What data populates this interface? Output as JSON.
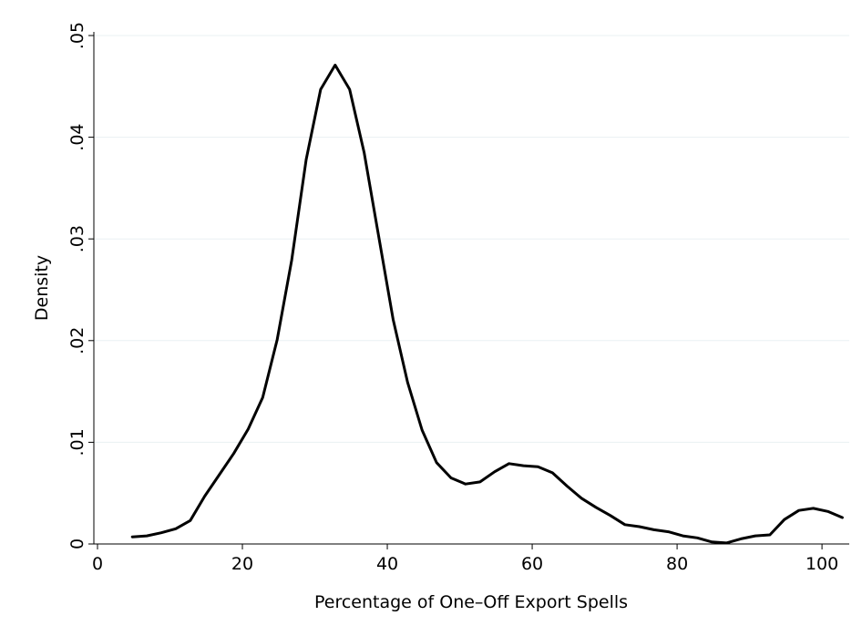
{
  "chart_data": {
    "type": "line",
    "title": "",
    "xlabel": "Percentage of One–Off Export Spells",
    "ylabel": "Density",
    "xlim": [
      0,
      104
    ],
    "ylim": [
      0,
      0.05
    ],
    "xticks": [
      0,
      20,
      40,
      60,
      80,
      100
    ],
    "xtick_labels": [
      "0",
      "20",
      "40",
      "60",
      "80",
      "100"
    ],
    "yticks": [
      0,
      0.01,
      0.02,
      0.03,
      0.04,
      0.05
    ],
    "ytick_labels": [
      "0",
      ".01",
      ".02",
      ".03",
      ".04",
      ".05"
    ],
    "grid": "horizontal",
    "series": [
      {
        "color": "#000000",
        "x": [
          4.8,
          6.8,
          8.8,
          10.8,
          12.8,
          14.8,
          16.8,
          18.8,
          20.8,
          22.8,
          24.8,
          26.8,
          28.8,
          30.8,
          32.8,
          34.8,
          36.8,
          38.8,
          40.8,
          42.8,
          44.8,
          46.8,
          48.8,
          50.8,
          52.8,
          54.8,
          56.8,
          58.8,
          60.8,
          62.8,
          64.8,
          66.8,
          68.8,
          70.8,
          72.8,
          74.8,
          76.8,
          78.8,
          80.8,
          82.8,
          84.8,
          86.8,
          88.8,
          90.8,
          92.8,
          94.8,
          96.8,
          98.8,
          100.8,
          102.8
        ],
        "y": [
          0.0007,
          0.0008,
          0.0011,
          0.0015,
          0.0023,
          0.0047,
          0.0068,
          0.0089,
          0.0113,
          0.0144,
          0.0201,
          0.0279,
          0.0378,
          0.0447,
          0.0471,
          0.0447,
          0.0385,
          0.0303,
          0.0221,
          0.0159,
          0.0112,
          0.008,
          0.0065,
          0.0059,
          0.0061,
          0.0071,
          0.0079,
          0.0077,
          0.0076,
          0.007,
          0.0057,
          0.0045,
          0.0036,
          0.0028,
          0.0019,
          0.0017,
          0.0014,
          0.0012,
          0.0008,
          0.0006,
          0.0002,
          0.0001,
          0.0005,
          0.0008,
          0.0009,
          0.0024,
          0.0033,
          0.0035,
          0.0032,
          0.0026
        ]
      }
    ]
  }
}
